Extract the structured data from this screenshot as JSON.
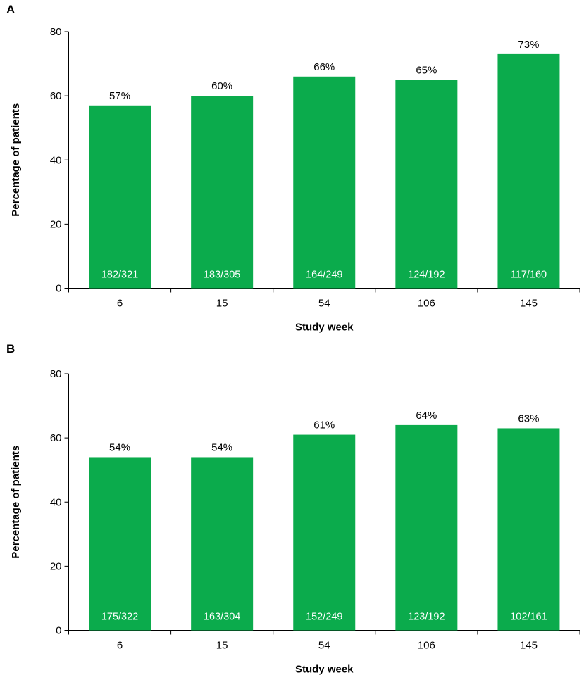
{
  "chart_data": [
    {
      "type": "bar",
      "panel": "A",
      "categories": [
        "6",
        "15",
        "54",
        "106",
        "145"
      ],
      "values": [
        57,
        60,
        66,
        65,
        73
      ],
      "value_labels": [
        "57%",
        "60%",
        "66%",
        "65%",
        "73%"
      ],
      "count_labels": [
        "182/321",
        "183/305",
        "164/249",
        "124/192",
        "117/160"
      ],
      "xlabel": "Study week",
      "ylabel": "Percentage of patients",
      "ylim": [
        0,
        80
      ],
      "yticks": [
        0,
        20,
        40,
        60,
        80
      ],
      "grid": false,
      "bar_color": "#0bab4c"
    },
    {
      "type": "bar",
      "panel": "B",
      "categories": [
        "6",
        "15",
        "54",
        "106",
        "145"
      ],
      "values": [
        54,
        54,
        61,
        64,
        63
      ],
      "value_labels": [
        "54%",
        "54%",
        "61%",
        "64%",
        "63%"
      ],
      "count_labels": [
        "175/322",
        "163/304",
        "152/249",
        "123/192",
        "102/161"
      ],
      "xlabel": "Study week",
      "ylabel": "Percentage of patients",
      "ylim": [
        0,
        80
      ],
      "yticks": [
        0,
        20,
        40,
        60,
        80
      ],
      "grid": false,
      "bar_color": "#0bab4c"
    }
  ]
}
